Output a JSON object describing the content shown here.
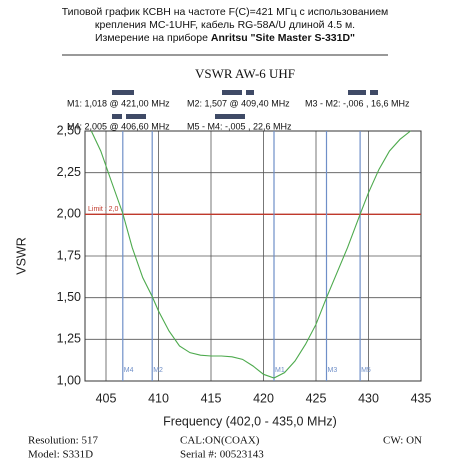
{
  "header": {
    "line1": "Типовой график КСВН на частоте F(C)=421 МГц с использованием",
    "line2": "крепления MC-1UHF, кабель RG-58A/U длиной 4.5 м.",
    "line3": "Измерение на приборе ",
    "line3_bold": "Anritsu \"Site Master S-331D\""
  },
  "readouts": [
    "M1: 1,018  @ 421,00 MHz",
    "M2: 1,507  @ 409,40 MHz",
    "M3 - M2: -,006  , 16,6 MHz",
    "M4: 2,005  @ 406,60 MHz",
    "M5 - M4: -,005  , 22,6 MHz"
  ],
  "footer": {
    "resolution": "Resolution:  517",
    "cal": "CAL:ON(COAX)",
    "cw": "CW: ON",
    "model": "Model: S331D",
    "serial": "Serial #: 00523143"
  },
  "chart_data": {
    "type": "line",
    "title": "VSWR AW-6 UHF",
    "x_label": "Frequency (402,0 - 435,0 MHz)",
    "y_label": "VSWR",
    "xlim": [
      403,
      435
    ],
    "xticks": [
      405,
      410,
      415,
      420,
      425,
      430,
      435
    ],
    "ylim": [
      1,
      2.5
    ],
    "yticks": [
      {
        "value": 1,
        "label": "1,00"
      },
      {
        "value": 1.25,
        "label": "1,25"
      },
      {
        "value": 1.5,
        "label": "1,50"
      },
      {
        "value": 1.75,
        "label": "1,75"
      },
      {
        "value": 2,
        "label": "2,00"
      },
      {
        "value": 2.25,
        "label": "2,25"
      },
      {
        "value": 2.5,
        "label": "2,50"
      }
    ],
    "grid": true,
    "series": [
      {
        "name": "VSWR",
        "color": "#4daa4d",
        "x": [
          403.6,
          404.5,
          405.5,
          406.6,
          407.5,
          408.5,
          409.4,
          410,
          411,
          412,
          413,
          414,
          415,
          416,
          417,
          418,
          419,
          420,
          421,
          422,
          423,
          424,
          425,
          426,
          427,
          428,
          429.2,
          430,
          431,
          432,
          433,
          434
        ],
        "values": [
          2.5,
          2.38,
          2.2,
          2.005,
          1.8,
          1.62,
          1.507,
          1.42,
          1.3,
          1.21,
          1.17,
          1.155,
          1.15,
          1.15,
          1.145,
          1.13,
          1.09,
          1.04,
          1.018,
          1.05,
          1.12,
          1.22,
          1.34,
          1.5,
          1.65,
          1.8,
          2.0,
          2.13,
          2.27,
          2.38,
          2.45,
          2.5
        ]
      }
    ],
    "limit": {
      "value": 2.0,
      "label": "Limit : 2,0",
      "color": "#c0392b"
    },
    "marker_color": "#6f8fc8",
    "markers": [
      {
        "name": "M4",
        "x": 406.6
      },
      {
        "name": "M2",
        "x": 409.4
      },
      {
        "name": "M1",
        "x": 421.0
      },
      {
        "name": "M3",
        "x": 426.0
      },
      {
        "name": "M5",
        "x": 429.2
      }
    ]
  }
}
